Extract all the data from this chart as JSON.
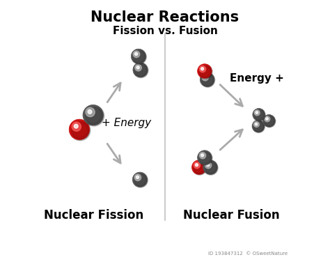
{
  "title": "Nuclear Reactions",
  "subtitle": "Fission vs. Fusion",
  "fission_label": "Nuclear Fission",
  "fusion_label": "Nuclear Fusion",
  "fission_energy_label": "+ Energy",
  "fusion_energy_label": "Energy +",
  "bg_color": "#ffffff",
  "title_fontsize": 15,
  "subtitle_fontsize": 11,
  "label_fontsize": 12,
  "energy_fontsize": 11,
  "red_color": "#cc1111",
  "dark_color": "#555555",
  "arrow_color": "#aaaaaa",
  "divider_color": "#c0c0c0",
  "watermark_bg": "#5baab5",
  "fig_width": 4.74,
  "fig_height": 3.99,
  "dpi": 100
}
